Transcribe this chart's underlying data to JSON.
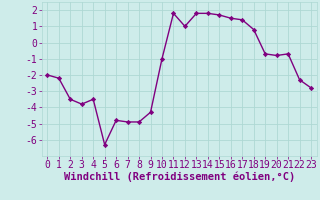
{
  "x": [
    0,
    1,
    2,
    3,
    4,
    5,
    6,
    7,
    8,
    9,
    10,
    11,
    12,
    13,
    14,
    15,
    16,
    17,
    18,
    19,
    20,
    21,
    22,
    23
  ],
  "y": [
    -2.0,
    -2.2,
    -3.5,
    -3.8,
    -3.5,
    -6.3,
    -4.8,
    -4.9,
    -4.9,
    -4.3,
    -1.0,
    1.8,
    1.0,
    1.8,
    1.8,
    1.7,
    1.5,
    1.4,
    0.8,
    -0.7,
    -0.8,
    -0.7,
    -2.3,
    -2.8
  ],
  "line_color": "#800080",
  "marker": "D",
  "marker_size": 2.2,
  "line_width": 1.0,
  "bg_color": "#ceecea",
  "grid_color": "#aed8d4",
  "xlabel": "Windchill (Refroidissement éolien,°C)",
  "xlabel_fontsize": 7.5,
  "tick_fontsize": 7,
  "xlim": [
    -0.5,
    23.5
  ],
  "ylim": [
    -7.0,
    2.5
  ],
  "yticks": [
    -6,
    -5,
    -4,
    -3,
    -2,
    -1,
    0,
    1,
    2
  ],
  "xticks": [
    0,
    1,
    2,
    3,
    4,
    5,
    6,
    7,
    8,
    9,
    10,
    11,
    12,
    13,
    14,
    15,
    16,
    17,
    18,
    19,
    20,
    21,
    22,
    23
  ]
}
